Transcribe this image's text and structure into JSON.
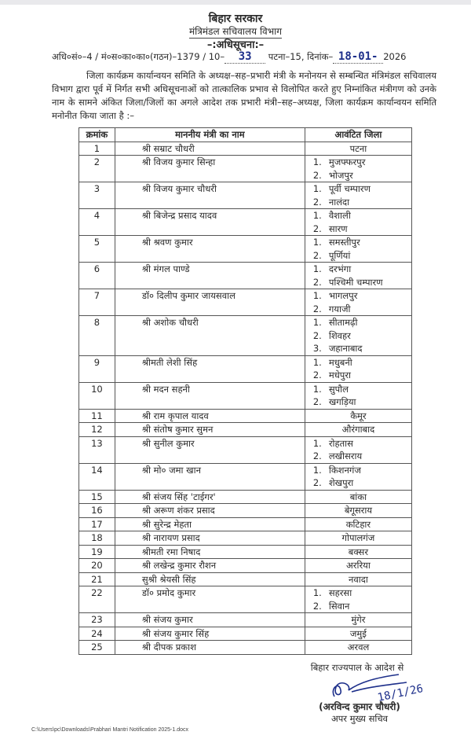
{
  "header": {
    "government": "बिहार सरकार",
    "department": "मंत्रिमंडल सचिवालय विभाग",
    "notice_title": "–:अधिसूचना:–",
    "ref_prefix": "अधि०सं०–4 / मं०स०का०का०(गठन)–1379 / 10–",
    "ref_number_handwritten": "33",
    "ref_place": "पटना–15, दिनांक–",
    "date_handwritten": "18-01-",
    "year": "2026"
  },
  "body_text": "जिला कार्यक्रम कार्यान्वयन समिति के अध्यक्ष–सह–प्रभारी मंत्री के मनोनयन से सम्बन्धित मंत्रिमंडल सचिवालय विभाग द्वारा पूर्व में निर्गत सभी अधिसूचनाओं को तात्कालिक प्रभाव से विलोपित करते हुए निम्नांकित मंत्रीगण को उनके नाम के सामने अंकित जिला/जिलों का अगले आदेश तक प्रभारी मंत्री–सह–अध्यक्ष, जिला कार्यक्रम कार्यान्वयन समिति मनोनीत किया जाता है :–",
  "table": {
    "headers": [
      "क्रमांक",
      "माननीय मंत्री का नाम",
      "आवंटित जिला"
    ],
    "rows": [
      {
        "sn": "1",
        "name": "श्री सम्राट चौधरी",
        "districts": [
          "पटना"
        ]
      },
      {
        "sn": "2",
        "name": "श्री विजय कुमार सिन्हा",
        "districts": [
          "मुजफ्फरपुर",
          "भोजपुर"
        ]
      },
      {
        "sn": "3",
        "name": "श्री विजय कुमार चौधरी",
        "districts": [
          "पूर्वी चम्पारण",
          "नालंदा"
        ]
      },
      {
        "sn": "4",
        "name": "श्री बिजेन्द्र प्रसाद यादव",
        "districts": [
          "वैशाली",
          "सारण"
        ]
      },
      {
        "sn": "5",
        "name": "श्री श्रवण कुमार",
        "districts": [
          "समस्तीपुर",
          "पूर्णियां"
        ]
      },
      {
        "sn": "6",
        "name": "श्री मंगल पाण्डे",
        "districts": [
          "दरभंगा",
          "पश्चिमी चम्पारण"
        ]
      },
      {
        "sn": "7",
        "name": "डॉ० दिलीप कुमार जायसवाल",
        "districts": [
          "भागलपुर",
          "गयाजी"
        ]
      },
      {
        "sn": "8",
        "name": "श्री अशोक चौधरी",
        "districts": [
          "सीतामढ़ी",
          "शिवहर",
          "जहानाबाद"
        ]
      },
      {
        "sn": "9",
        "name": "श्रीमती लेशी सिंह",
        "districts": [
          "मधुबनी",
          "मधेपुरा"
        ]
      },
      {
        "sn": "10",
        "name": "श्री मदन सहनी",
        "districts": [
          "सुपौल",
          "खगड़िया"
        ]
      },
      {
        "sn": "11",
        "name": "श्री राम कृपाल यादव",
        "districts": [
          "कैमूर"
        ]
      },
      {
        "sn": "12",
        "name": "श्री संतोष कुमार सुमन",
        "districts": [
          "औरंगाबाद"
        ]
      },
      {
        "sn": "13",
        "name": "श्री सुनील कुमार",
        "districts": [
          "रोहतास",
          "लखीसराय"
        ]
      },
      {
        "sn": "14",
        "name": "श्री मो० जमा खान",
        "districts": [
          "किशनगंज",
          "शेखपुरा"
        ]
      },
      {
        "sn": "15",
        "name": "श्री संजय सिंह 'टाईगर'",
        "districts": [
          "बांका"
        ]
      },
      {
        "sn": "16",
        "name": "श्री अरूण शंकर प्रसाद",
        "districts": [
          "बेगूसराय"
        ]
      },
      {
        "sn": "17",
        "name": "श्री सुरेन्द्र मेहता",
        "districts": [
          "कटिहार"
        ]
      },
      {
        "sn": "18",
        "name": "श्री नारायण प्रसाद",
        "districts": [
          "गोपालगंज"
        ]
      },
      {
        "sn": "19",
        "name": "श्रीमती रमा निषाद",
        "districts": [
          "बक्सर"
        ]
      },
      {
        "sn": "20",
        "name": "श्री लखेन्द्र कुमार रौशन",
        "districts": [
          "अररिया"
        ]
      },
      {
        "sn": "21",
        "name": "सुश्री श्रेयसी सिंह",
        "districts": [
          "नवादा"
        ]
      },
      {
        "sn": "22",
        "name": "डॉ० प्रमोद कुमार",
        "districts": [
          "सहरसा",
          "सिवान"
        ]
      },
      {
        "sn": "23",
        "name": "श्री संजय कुमार",
        "districts": [
          "मुंगेर"
        ]
      },
      {
        "sn": "24",
        "name": "श्री संजय कुमार सिंह",
        "districts": [
          "जमुई"
        ]
      },
      {
        "sn": "25",
        "name": "श्री दीपक प्रकाश",
        "districts": [
          "अरवल"
        ]
      }
    ]
  },
  "signature_block": {
    "order_line": "बिहार राज्यपाल के आदेश से",
    "handwritten_date": "18/1/26",
    "name": "(अरविन्द कुमार चौधरी)",
    "designation": "अपर मुख्य सचिव"
  },
  "footer_path": "C:\\Users\\pc\\Downloads\\Prabhari Mantri Notification 2025-1.docx",
  "colors": {
    "ink": "#2a2a2a",
    "handwriting": "#1d2f8a"
  }
}
